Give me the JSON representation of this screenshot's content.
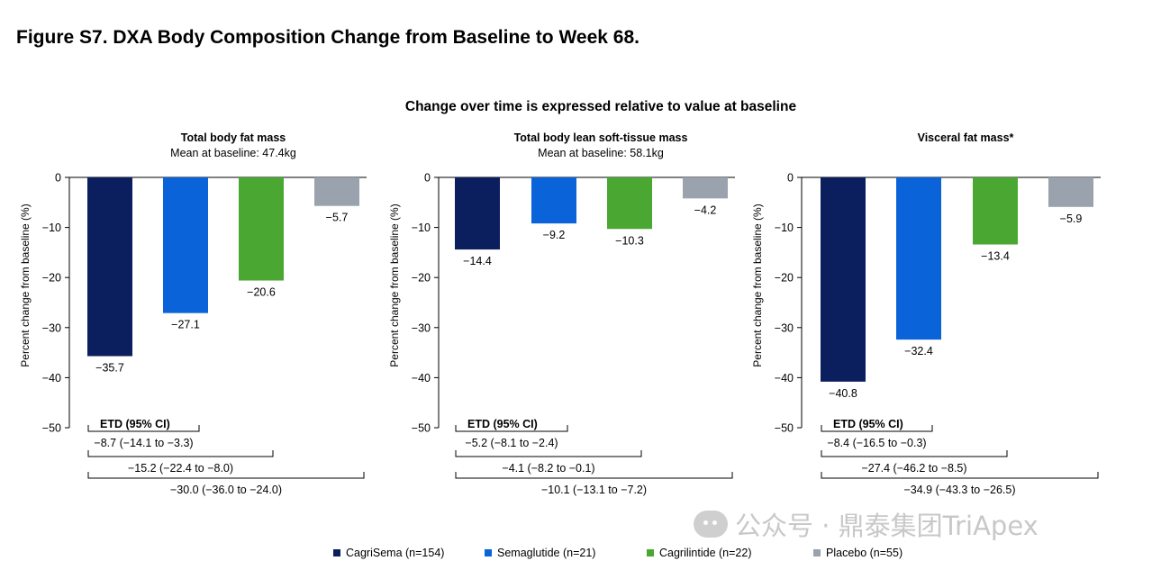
{
  "figure_title": "Figure S7. DXA Body Composition Change from Baseline to Week 68.",
  "subtitle": "Change over time is expressed relative to value at baseline",
  "watermark": "公众号 · 鼎泰集团TriApex",
  "legend": [
    {
      "label": "CagriSema (n=154)",
      "color": "#0b1f5e"
    },
    {
      "label": "Semaglutide (n=21)",
      "color": "#0a63d8"
    },
    {
      "label": "Cagrilintide (n=22)",
      "color": "#4aa832"
    },
    {
      "label": "Placebo (n=55)",
      "color": "#9aa2ad"
    }
  ],
  "chart_data": [
    {
      "type": "bar",
      "title": "Total body fat mass",
      "subtitle": "Mean at baseline: 47.4kg",
      "ylabel": "Percent change from baseline (%)",
      "ylim": [
        -50,
        0
      ],
      "yticks": [
        "0",
        "−10",
        "−20",
        "−30",
        "−40",
        "−50"
      ],
      "categories": [
        "CagriSema",
        "Semaglutide",
        "Cagrilintide",
        "Placebo"
      ],
      "values": [
        -35.7,
        -27.1,
        -20.6,
        -5.7
      ],
      "value_labels": [
        "−35.7",
        "−27.1",
        "−20.6",
        "−5.7"
      ],
      "etd_title": "ETD (95% CI)",
      "etd": [
        "−8.7 (−14.1 to −3.3)",
        "−15.2 (−22.4 to −8.0)",
        "−30.0 (−36.0 to −24.0)"
      ]
    },
    {
      "type": "bar",
      "title": "Total body lean soft-tissue mass",
      "subtitle": "Mean at baseline: 58.1kg",
      "ylabel": "Percent change from baseline (%)",
      "ylim": [
        -50,
        0
      ],
      "yticks": [
        "0",
        "−10",
        "−20",
        "−30",
        "−40",
        "−50"
      ],
      "categories": [
        "CagriSema",
        "Semaglutide",
        "Cagrilintide",
        "Placebo"
      ],
      "values": [
        -14.4,
        -9.2,
        -10.3,
        -4.2
      ],
      "value_labels": [
        "−14.4",
        "−9.2",
        "−10.3",
        "−4.2"
      ],
      "etd_title": "ETD (95% CI)",
      "etd": [
        "−5.2 (−8.1 to −2.4)",
        "−4.1 (−8.2 to −0.1)",
        "−10.1 (−13.1 to −7.2)"
      ]
    },
    {
      "type": "bar",
      "title": "Visceral fat mass*",
      "subtitle": "",
      "ylabel": "Percent change from baseline (%)",
      "ylim": [
        -50,
        0
      ],
      "yticks": [
        "0",
        "−10",
        "−20",
        "−30",
        "−40",
        "−50"
      ],
      "categories": [
        "CagriSema",
        "Semaglutide",
        "Cagrilintide",
        "Placebo"
      ],
      "values": [
        -40.8,
        -32.4,
        -13.4,
        -5.9
      ],
      "value_labels": [
        "−40.8",
        "−32.4",
        "−13.4",
        "−5.9"
      ],
      "etd_title": "ETD (95% CI)",
      "etd": [
        "−8.4 (−16.5 to −0.3)",
        "−27.4 (−46.2 to −8.5)",
        "−34.9 (−43.3 to −26.5)"
      ]
    }
  ]
}
